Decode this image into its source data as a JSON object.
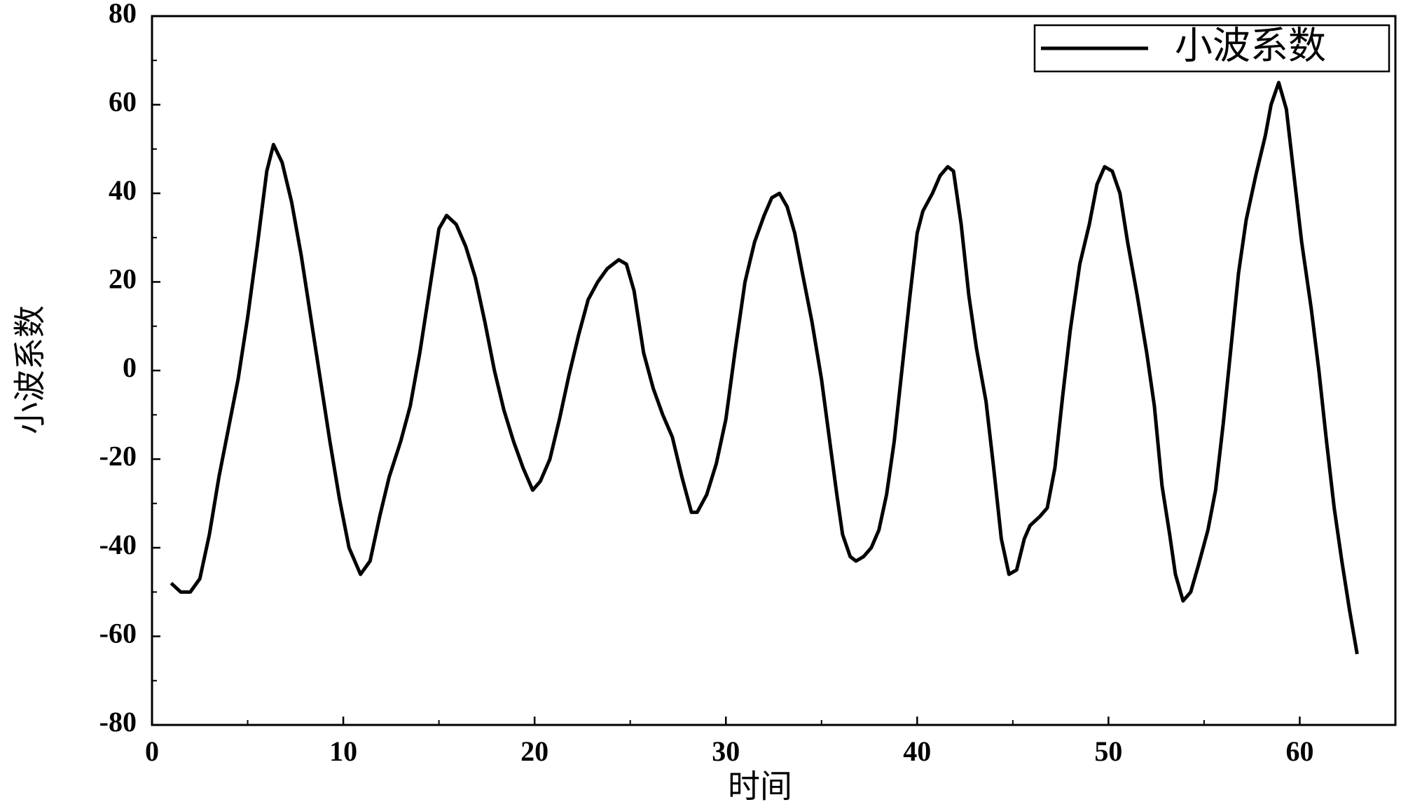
{
  "chart_data": {
    "type": "line",
    "x_label": "时间",
    "y_label": "小波系数",
    "xlim": [
      0,
      65
    ],
    "ylim": [
      -80,
      80
    ],
    "xticks": [
      0,
      10,
      20,
      30,
      40,
      50,
      60
    ],
    "yticks": [
      -80,
      -60,
      -40,
      -20,
      0,
      20,
      40,
      60,
      80
    ],
    "legend": "upper right",
    "x": [
      1,
      1.5,
      2,
      2.5,
      3,
      3.5,
      4,
      4.5,
      5,
      5.5,
      6,
      6.35,
      6.8,
      7.3,
      7.8,
      8.3,
      8.8,
      9.3,
      9.8,
      10.3,
      10.9,
      11.4,
      11.9,
      12.4,
      13,
      13.5,
      14,
      14.5,
      15,
      15.4,
      15.9,
      16.4,
      16.9,
      17.4,
      17.9,
      18.4,
      18.9,
      19.4,
      19.9,
      20.3,
      20.8,
      21.3,
      21.8,
      22.3,
      22.8,
      23.3,
      23.8,
      24.4,
      24.8,
      25.2,
      25.7,
      26.2,
      26.7,
      27.2,
      27.7,
      28.2,
      28.5,
      29,
      29.5,
      30,
      30.5,
      31,
      31.5,
      32,
      32.4,
      32.8,
      33.2,
      33.6,
      34,
      34.5,
      35,
      35.4,
      35.8,
      36.1,
      36.5,
      36.8,
      37.2,
      37.6,
      38,
      38.4,
      38.8,
      39.2,
      39.6,
      40,
      40.3,
      40.8,
      41.2,
      41.6,
      41.9,
      42.3,
      42.7,
      43.1,
      43.6,
      44,
      44.4,
      44.8,
      45.2,
      45.6,
      45.9,
      46.4,
      46.8,
      47.2,
      47.6,
      48,
      48.5,
      49,
      49.4,
      49.8,
      50.2,
      50.6,
      51,
      51.5,
      52,
      52.4,
      52.8,
      53.2,
      53.5,
      53.9,
      54.3,
      54.7,
      55.2,
      55.6,
      56,
      56.4,
      56.8,
      57.2,
      57.7,
      58.2,
      58.5,
      58.9,
      59.3,
      59.7,
      60.1,
      60.6,
      61,
      61.4,
      61.8,
      62.2,
      62.6,
      63
    ],
    "series": [
      {
        "name": "小波系数",
        "color": "#000000",
        "values": [
          -48,
          -50,
          -50,
          -47,
          -37,
          -24,
          -13,
          -2,
          12,
          28,
          45,
          51,
          47,
          38,
          26,
          12,
          -2,
          -16,
          -29,
          -40,
          -46,
          -43,
          -33,
          -24,
          -16,
          -8,
          4,
          18,
          32,
          35,
          33,
          28,
          21,
          11,
          0,
          -9,
          -16,
          -22,
          -27,
          -25,
          -20,
          -11,
          -1,
          8,
          16,
          20,
          23,
          25,
          24,
          18,
          4,
          -4,
          -10,
          -15,
          -24,
          -32,
          -32,
          -28,
          -21,
          -11,
          5,
          20,
          29,
          35,
          39,
          40,
          37,
          31,
          22,
          11,
          -2,
          -15,
          -28,
          -37,
          -42,
          -43,
          -42,
          -40,
          -36,
          -28,
          -16,
          0,
          16,
          31,
          36,
          40,
          44,
          46,
          45,
          33,
          17,
          5,
          -7,
          -22,
          -38,
          -46,
          -45,
          -38,
          -35,
          -33,
          -31,
          -22,
          -6,
          9,
          24,
          33,
          42,
          46,
          45,
          40,
          29,
          17,
          4,
          -8,
          -26,
          -37,
          -46,
          -52,
          -50,
          -44,
          -36,
          -27,
          -12,
          5,
          22,
          34,
          44,
          53,
          60,
          65,
          59,
          44,
          29,
          14,
          0,
          -16,
          -31,
          -43,
          -54,
          -64
        ]
      }
    ]
  }
}
